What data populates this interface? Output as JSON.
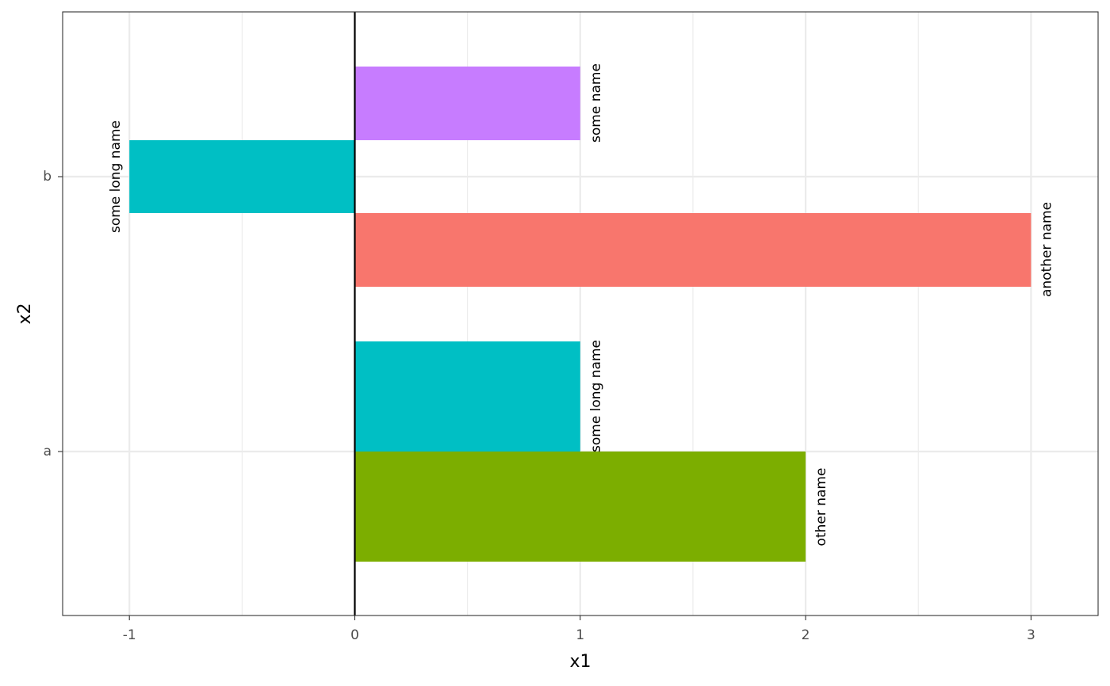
{
  "chart_data": {
    "type": "bar",
    "orientation": "horizontal",
    "xlabel": "x1",
    "ylabel": "x2",
    "xlim": [
      -1.3,
      3.3
    ],
    "x_ticks": [
      -1,
      0,
      1,
      2,
      3
    ],
    "x_tick_labels": [
      "-1",
      "0",
      "1",
      "2",
      "3"
    ],
    "categories": [
      "a",
      "b"
    ],
    "grid": true,
    "reference_line": {
      "x": 0
    },
    "bars": [
      {
        "category": "a",
        "value": 2,
        "label": "other name",
        "color": "#7CAE00"
      },
      {
        "category": "a",
        "value": 1,
        "label": "some long name",
        "color": "#00BFC4"
      },
      {
        "category": "b",
        "value": 3,
        "label": "another name",
        "color": "#F8766D"
      },
      {
        "category": "b",
        "value": -1,
        "label": "some long name",
        "color": "#00BFC4"
      },
      {
        "category": "b",
        "value": 1,
        "label": "some name",
        "color": "#C77CFF"
      }
    ]
  }
}
